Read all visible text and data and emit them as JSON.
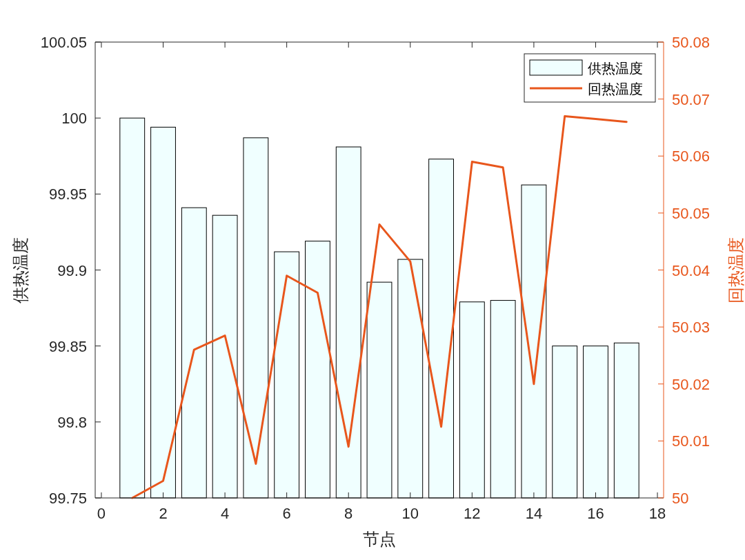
{
  "chart_data": {
    "type": "bar",
    "xlabel": "节点",
    "ylabel": "供热温度",
    "y2label": "回热温度",
    "x": [
      1,
      2,
      3,
      4,
      5,
      6,
      7,
      8,
      9,
      10,
      11,
      12,
      13,
      14,
      15,
      16,
      17
    ],
    "xlim": [
      -0.2,
      18.2
    ],
    "xticks": [
      0,
      2,
      4,
      6,
      8,
      10,
      12,
      14,
      16,
      18
    ],
    "ylim": [
      99.75,
      100.05
    ],
    "yticks": [
      99.75,
      99.8,
      99.85,
      99.9,
      99.95,
      100,
      100.05
    ],
    "y2lim": [
      50,
      50.08
    ],
    "y2ticks": [
      50,
      50.01,
      50.02,
      50.03,
      50.04,
      50.05,
      50.06,
      50.07,
      50.08
    ],
    "legend": "top right",
    "grid": false,
    "series": [
      {
        "name": "供热温度",
        "color": "#f0ffff",
        "values": [
          100.0,
          99.994,
          99.941,
          99.936,
          99.987,
          99.912,
          99.919,
          99.981,
          99.892,
          99.907,
          99.973,
          99.879,
          99.88,
          99.956,
          99.85,
          99.85,
          99.852
        ]
      },
      {
        "name": "回热温度",
        "type": "line",
        "axis": "y2",
        "color": "#e8561c",
        "values": [
          50.0,
          50.003,
          50.026,
          50.0285,
          50.006,
          50.039,
          50.036,
          50.009,
          50.048,
          50.0415,
          50.0125,
          50.059,
          50.058,
          50.02,
          50.067,
          50.0665,
          50.066
        ]
      }
    ]
  }
}
